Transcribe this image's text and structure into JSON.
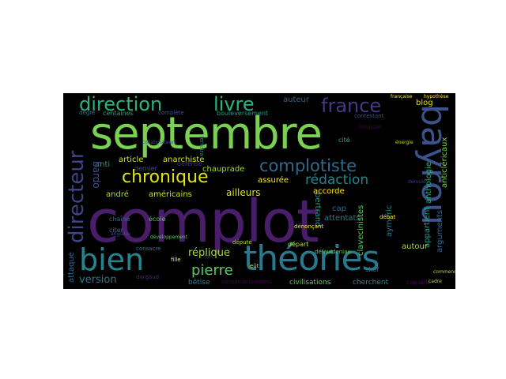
{
  "words": [
    {
      "id": "complot",
      "text": "complot",
      "color": "#4a1d6b"
    },
    {
      "id": "septembre",
      "text": "septembre",
      "color": "#7ad151"
    },
    {
      "id": "theories",
      "text": "théories",
      "color": "#2a788e"
    },
    {
      "id": "bayrou",
      "text": "bayrou",
      "color": "#3b528b"
    },
    {
      "id": "bien",
      "text": "bien",
      "color": "#25858e"
    },
    {
      "id": "direction",
      "text": "direction",
      "color": "#2db27d"
    },
    {
      "id": "livre",
      "text": "livre",
      "color": "#2db27d"
    },
    {
      "id": "france",
      "text": "france",
      "color": "#443983"
    },
    {
      "id": "directeur",
      "text": "directeur",
      "color": "#414487"
    },
    {
      "id": "chronique",
      "text": "chronique",
      "color": "#dde318"
    },
    {
      "id": "complotiste",
      "text": "complotiste",
      "color": "#31688e"
    },
    {
      "id": "redaction",
      "text": "rédaction",
      "color": "#25858e"
    },
    {
      "id": "pierre",
      "text": "pierre",
      "color": "#5ec962"
    },
    {
      "id": "replique",
      "text": "réplique",
      "color": "#a0da39"
    },
    {
      "id": "version",
      "text": "version",
      "color": "#2a788e"
    },
    {
      "id": "attaque",
      "text": "attaque",
      "color": "#31688e"
    },
    {
      "id": "article",
      "text": "article",
      "color": "#d2e21b"
    },
    {
      "id": "anarchiste",
      "text": "anarchiste",
      "color": "#dde318"
    },
    {
      "id": "chauprade",
      "text": "chauprade",
      "color": "#a0da39"
    },
    {
      "id": "anti",
      "text": "anti",
      "color": "#1f9e89"
    },
    {
      "id": "bardo",
      "text": "bardo",
      "color": "#3b528b"
    },
    {
      "id": "andre",
      "text": "andré",
      "color": "#a0da39"
    },
    {
      "id": "americains",
      "text": "américains",
      "color": "#d2e21b"
    },
    {
      "id": "ailleurs",
      "text": "ailleurs",
      "color": "#dde318"
    },
    {
      "id": "assuree",
      "text": "assurée",
      "color": "#fde725"
    },
    {
      "id": "accorde",
      "text": "accorde",
      "color": "#fde725"
    },
    {
      "id": "bertrand",
      "text": "bertrand",
      "color": "#1f9e89"
    },
    {
      "id": "attentats",
      "text": "attentats",
      "color": "#2a788e"
    },
    {
      "id": "appartient",
      "text": "appartient",
      "color": "#1f9e89"
    },
    {
      "id": "arguments",
      "text": "arguments",
      "color": "#31688e"
    },
    {
      "id": "autour",
      "text": "autour",
      "color": "#a0da39"
    },
    {
      "id": "aymeric",
      "text": "aymeric",
      "color": "#2a788e"
    },
    {
      "id": "clavecinistes",
      "text": "clavecinistes",
      "color": "#5ec962"
    },
    {
      "id": "cap",
      "text": "cap",
      "color": "#31688e"
    },
    {
      "id": "anthologie",
      "text": "anthologie",
      "color": "#2db27d"
    },
    {
      "id": "anticlericaux",
      "text": "anticléricaux",
      "color": "#7ad151"
    },
    {
      "id": "blog",
      "text": "blog",
      "color": "#dde318"
    },
    {
      "id": "auteur",
      "text": "auteur",
      "color": "#31688e"
    },
    {
      "id": "centaines",
      "text": "centaines",
      "color": "#1f9e89"
    },
    {
      "id": "bouleversement",
      "text": "bouleversement",
      "color": "#1f9e89"
    },
    {
      "id": "complete",
      "text": "complète",
      "color": "#3b528b"
    },
    {
      "id": "bete",
      "text": "bêtise",
      "color": "#26828e"
    },
    {
      "id": "civilisations",
      "text": "civilisations",
      "color": "#5ec962"
    },
    {
      "id": "cherchent",
      "text": "cherchent",
      "color": "#21918c"
    },
    {
      "id": "chef",
      "text": "chef",
      "color": "#2a788e"
    },
    {
      "id": "chaine",
      "text": "chaîne",
      "color": "#31688e"
    },
    {
      "id": "citer",
      "text": "citer",
      "color": "#31688e"
    },
    {
      "id": "ecole",
      "text": "école",
      "color": "#5ec962"
    },
    {
      "id": "depart",
      "text": "départ",
      "color": "#b5de2b"
    },
    {
      "id": "debat",
      "text": "débat",
      "color": "#fde725"
    },
    {
      "id": "denoncant",
      "text": "dénonçant",
      "color": "#fde725"
    },
    {
      "id": "cite",
      "text": "cité",
      "color": "#2db27d"
    },
    {
      "id": "coulisse",
      "text": "coulisse",
      "color": "#440154"
    },
    {
      "id": "contestant",
      "text": "contestant",
      "color": "#3b528b"
    },
    {
      "id": "defense",
      "text": "défense",
      "color": "#443983"
    },
    {
      "id": "dernier",
      "text": "dernier",
      "color": "#3b528b"
    },
    {
      "id": "degre",
      "text": "degré",
      "color": "#2a788e"
    },
    {
      "id": "depute",
      "text": "député",
      "color": "#b5de2b"
    },
    {
      "id": "capable",
      "text": "capable",
      "color": "#440154"
    },
    {
      "id": "defaut",
      "text": "défaut",
      "color": "#5ec962"
    },
    {
      "id": "deniau",
      "text": "deniau",
      "color": "#5ec962"
    },
    {
      "id": "dargaud",
      "text": "dargaud",
      "color": "#482878"
    },
    {
      "id": "consacre",
      "text": "consacre",
      "color": "#2a788e"
    },
    {
      "id": "fille",
      "text": "fille",
      "color": "#fde725"
    },
    {
      "id": "fait",
      "text": "fait",
      "color": "#482878"
    },
    {
      "id": "eut",
      "text": "eût",
      "color": "#d2e21b"
    },
    {
      "id": "conspirationnistes",
      "text": "conspirationnistes",
      "color": "#440154"
    },
    {
      "id": "anglaise",
      "text": "anglaise",
      "color": "#3e4a89"
    },
    {
      "id": "ferreira",
      "text": "ferreira",
      "color": "#21918c"
    },
    {
      "id": "francaise",
      "text": "française",
      "color": "#fde725"
    },
    {
      "id": "hypothese",
      "text": "hypothèse",
      "color": "#fde725"
    },
    {
      "id": "commencent",
      "text": "commencent",
      "color": "#b5de2b"
    },
    {
      "id": "cadre",
      "text": "cadre",
      "color": "#b5de2b"
    },
    {
      "id": "collaborateurs",
      "text": "collaborateurs",
      "color": "#3e4a89"
    },
    {
      "id": "deroule",
      "text": "déroulé",
      "color": "#443983"
    },
    {
      "id": "developpement",
      "text": "développement",
      "color": "#5ec962"
    },
    {
      "id": "energie",
      "text": "énergie",
      "color": "#b5de2b"
    }
  ]
}
